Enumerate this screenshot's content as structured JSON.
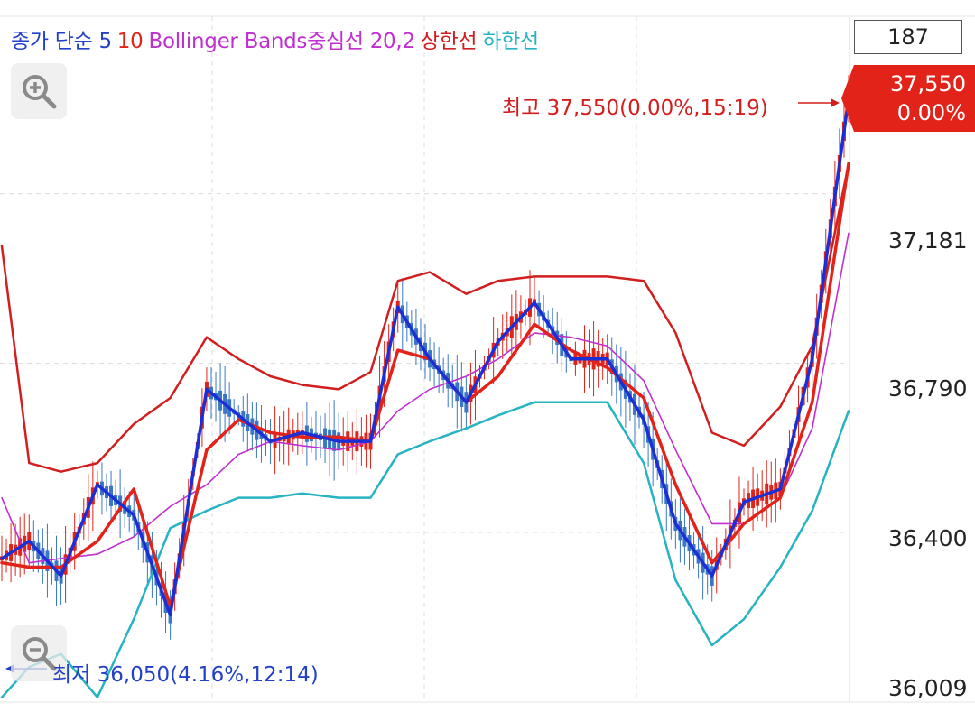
{
  "legend": {
    "price": "종가 단순 5",
    "ma10": "10",
    "bollinger": "Bollinger Bands중심선 20,2",
    "upper": "상한선",
    "lower": "하한선"
  },
  "count_value": "187",
  "current_price": {
    "value": "37,550",
    "change": "0.00%"
  },
  "annotations": {
    "high": "최고 37,550(0.00%,15:19)",
    "low": "최저 36,050(4.16%,12:14)"
  },
  "icons": {
    "zoom_in": "zoom-in-icon",
    "zoom_out": "zoom-out-icon"
  },
  "colors": {
    "ma5": "#1c2fd4",
    "ma10": "#e2231a",
    "bollinger_mid": "#c030d0",
    "bollinger_upper": "#d21e1e",
    "bollinger_lower": "#27b3c2",
    "candle_down": "#3a76c4",
    "candle_up": "#e2231a",
    "legend_text": "#2340c8"
  },
  "chart_data": {
    "type": "line",
    "ylim": [
      36009,
      37590
    ],
    "yticks": [
      "37,181",
      "36,790",
      "36,400",
      "36,009"
    ],
    "x": [
      1,
      7,
      14,
      22,
      30,
      38,
      46,
      53,
      60,
      67,
      75,
      82,
      88,
      95,
      103,
      110,
      118,
      126,
      134,
      142,
      149,
      157,
      164,
      172,
      179,
      187
    ],
    "series": [
      {
        "name": "종가 단순 5",
        "values": [
          36340,
          36380,
          36300,
          36510,
          36440,
          36210,
          36730,
          36670,
          36610,
          36630,
          36610,
          36610,
          36920,
          36800,
          36700,
          36840,
          36930,
          36800,
          36800,
          36660,
          36420,
          36300,
          36470,
          36500,
          36800,
          37400
        ]
      },
      {
        "name": "10",
        "values": [
          36330,
          36320,
          36320,
          36380,
          36500,
          36230,
          36590,
          36660,
          36630,
          36620,
          36620,
          36610,
          36820,
          36800,
          36700,
          36760,
          36880,
          36820,
          36780,
          36710,
          36510,
          36330,
          36420,
          36480,
          36700,
          37250
        ]
      },
      {
        "name": "Bollinger Bands중심선 20,2",
        "values": [
          36480,
          36330,
          36340,
          36350,
          36390,
          36460,
          36510,
          36580,
          36610,
          36600,
          36590,
          36610,
          36680,
          36730,
          36760,
          36800,
          36860,
          36850,
          36830,
          36750,
          36590,
          36420,
          36420,
          36480,
          36640,
          37090
        ]
      },
      {
        "name": "상한선",
        "values": [
          37060,
          36560,
          36540,
          36560,
          36650,
          36710,
          36850,
          36800,
          36760,
          36740,
          36730,
          36770,
          36980,
          37000,
          36950,
          36980,
          36990,
          36990,
          36990,
          36980,
          36860,
          36630,
          36600,
          36690,
          36830,
          37250
        ]
      },
      {
        "name": "하한선",
        "values": [
          36020,
          36090,
          36120,
          36020,
          36200,
          36410,
          36450,
          36480,
          36480,
          36490,
          36480,
          36480,
          36580,
          36610,
          36640,
          36670,
          36700,
          36700,
          36700,
          36560,
          36290,
          36140,
          36200,
          36320,
          36450,
          36680
        ]
      }
    ]
  }
}
